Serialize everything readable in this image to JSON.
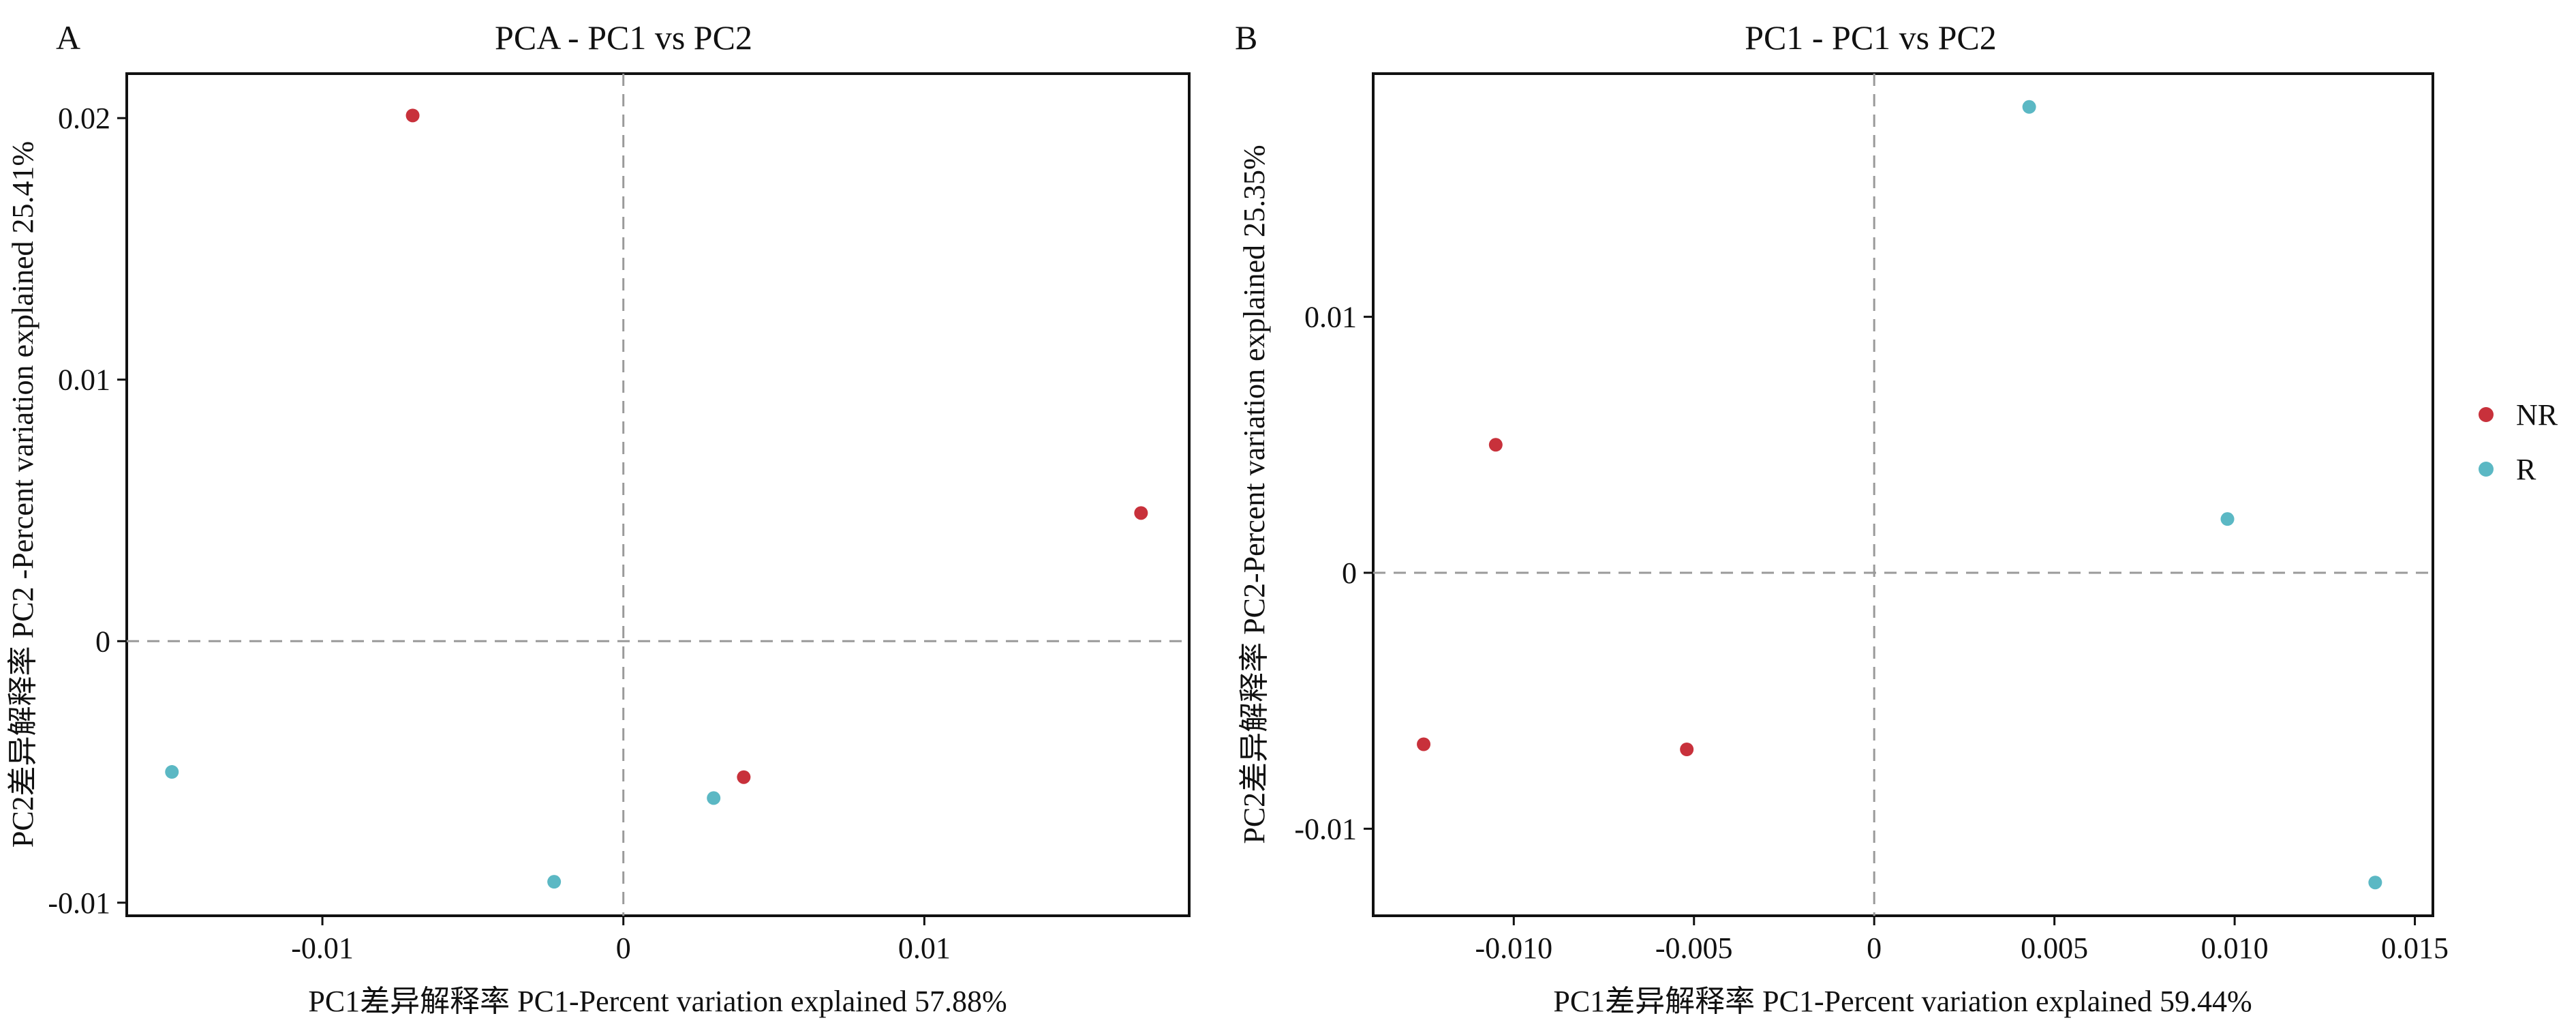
{
  "colors": {
    "NR": "#c8313b",
    "R": "#5bb8c4",
    "refline": "#9a9a9a",
    "axis": "#111111"
  },
  "legend": [
    {
      "label": "NR",
      "color": "#c8313b"
    },
    {
      "label": "R",
      "color": "#5bb8c4"
    }
  ],
  "chart_data": [
    {
      "type": "scatter",
      "panel": "A",
      "title": "PCA - PC1 vs PC2",
      "xlabel": "PC1差异解释率 PC1-Percent variation explained 57.88%",
      "ylabel": "PC2差异解释率  PC2 -Percent variation explained 25.41%",
      "xlim": [
        -0.0165,
        0.0188
      ],
      "ylim": [
        -0.0105,
        0.0217
      ],
      "xticks": [
        {
          "value": -0.01,
          "label": "-0.01"
        },
        {
          "value": 0,
          "label": "0"
        },
        {
          "value": 0.01,
          "label": "0.01"
        }
      ],
      "yticks": [
        {
          "value": -0.01,
          "label": "-0.01"
        },
        {
          "value": 0,
          "label": "0"
        },
        {
          "value": 0.01,
          "label": "0.01"
        },
        {
          "value": 0.02,
          "label": "0.02"
        }
      ],
      "grid": false,
      "reference_lines": {
        "x": 0,
        "y": 0
      },
      "series": [
        {
          "name": "NR",
          "points": [
            [
              -0.007,
              0.0201
            ],
            [
              0.0172,
              0.0049
            ],
            [
              0.004,
              -0.0052
            ]
          ]
        },
        {
          "name": "R",
          "points": [
            [
              -0.015,
              -0.005
            ],
            [
              -0.0023,
              -0.0092
            ],
            [
              0.003,
              -0.006
            ]
          ]
        }
      ]
    },
    {
      "type": "scatter",
      "panel": "B",
      "title": "PC1 - PC1 vs PC2",
      "xlabel": "PC1差异解释率 PC1-Percent variation explained 59.44%",
      "ylabel": "PC2差异解释率 PC2-Percent variation explained 25.35%",
      "xlim": [
        -0.0139,
        0.0155
      ],
      "ylim": [
        -0.0134,
        0.0195
      ],
      "xticks": [
        {
          "value": -0.01,
          "label": "-0.010"
        },
        {
          "value": -0.005,
          "label": "-0.005"
        },
        {
          "value": 0,
          "label": "0"
        },
        {
          "value": 0.005,
          "label": "0.005"
        },
        {
          "value": 0.01,
          "label": "0.010"
        },
        {
          "value": 0.015,
          "label": "0.015"
        }
      ],
      "yticks": [
        {
          "value": -0.01,
          "label": "-0.01"
        },
        {
          "value": 0,
          "label": "0"
        },
        {
          "value": 0.01,
          "label": "0.01"
        }
      ],
      "grid": false,
      "reference_lines": {
        "x": 0,
        "y": 0
      },
      "series": [
        {
          "name": "NR",
          "points": [
            [
              -0.0105,
              0.005
            ],
            [
              -0.0125,
              -0.0067
            ],
            [
              -0.0052,
              -0.0069
            ]
          ]
        },
        {
          "name": "R",
          "points": [
            [
              0.0043,
              0.0182
            ],
            [
              0.0098,
              0.0021
            ],
            [
              0.0139,
              -0.0121
            ]
          ]
        }
      ]
    }
  ]
}
